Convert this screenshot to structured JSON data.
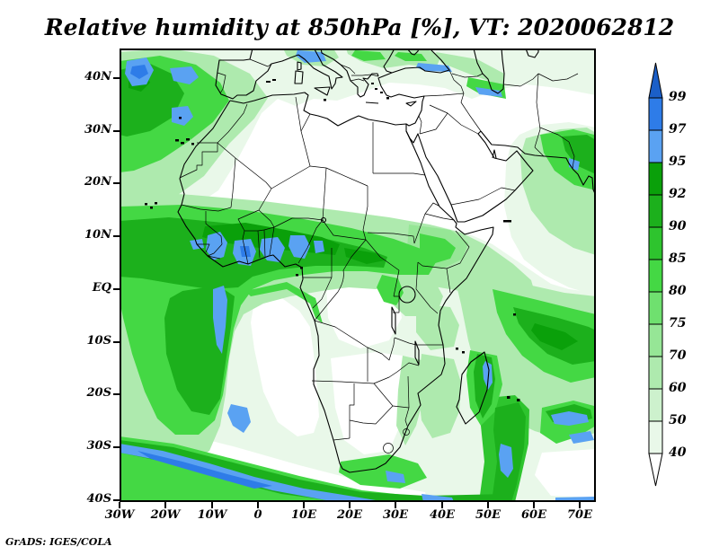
{
  "title": "Relative humidity at 850hPa [%], VT: 2020062812",
  "credit": "GrADS: IGES/COLA",
  "axes": {
    "x_tick_labels": [
      "30W",
      "20W",
      "10W",
      "0",
      "10E",
      "20E",
      "30E",
      "40E",
      "50E",
      "60E",
      "70E"
    ],
    "y_tick_labels": [
      "40N",
      "30N",
      "20N",
      "10N",
      "EQ",
      "10S",
      "20S",
      "30S",
      "40S"
    ]
  },
  "colorbar": {
    "tick_labels": [
      "99",
      "97",
      "95",
      "92",
      "90",
      "85",
      "80",
      "75",
      "70",
      "60",
      "50",
      "40"
    ],
    "segment_colors_top_to_bottom": [
      "#2e7ce8",
      "#5aa2f2",
      "#0aa00a",
      "#1cb01c",
      "#2ec42e",
      "#44d844",
      "#6fe06f",
      "#96e696",
      "#aeeaae",
      "#cdf1cd",
      "#e9f8e9"
    ],
    "arrow_top_color": "#1b5fc8",
    "arrow_bottom_color": "#ffffff"
  },
  "palette": {
    "white": "#ffffff",
    "g40": "#e9f8e9",
    "g50": "#cdf1cd",
    "g60": "#aeeaae",
    "g70": "#96e696",
    "g75": "#6fe06f",
    "g80": "#44d844",
    "g85": "#2ec42e",
    "g90": "#1cb01c",
    "g92": "#0aa00a",
    "b95": "#5aa2f2",
    "b97": "#2e7ce8",
    "b99": "#1b5fc8"
  },
  "chart_data": {
    "type": "filled_contour_map",
    "title": "Relative humidity at 850hPa [%], VT: 2020062812",
    "variable": "Relative humidity",
    "pressure_level": "850hPa",
    "units": "%",
    "valid_time": "2020062812",
    "contour_levels": [
      40,
      50,
      60,
      70,
      75,
      80,
      85,
      90,
      92,
      95,
      97,
      99
    ],
    "x_axis_ticks": [
      "30W",
      "20W",
      "10W",
      "0",
      "10E",
      "20E",
      "30E",
      "40E",
      "50E",
      "60E",
      "70E"
    ],
    "y_axis_ticks": [
      "40N",
      "30N",
      "20N",
      "10N",
      "EQ",
      "10S",
      "20S",
      "30S",
      "40S"
    ],
    "legend_position": "right",
    "region": "Africa and surrounding oceans, 30W-70E, 40S-40N"
  }
}
